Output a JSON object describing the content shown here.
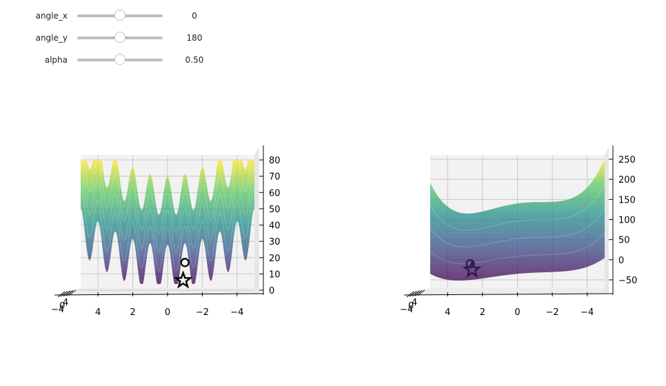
{
  "controls": {
    "sliders": [
      {
        "label": "angle_x",
        "value_text": "0",
        "fraction": 0.5
      },
      {
        "label": "angle_y",
        "value_text": "180",
        "fraction": 0.5
      },
      {
        "label": "alpha",
        "value_text": "0.50",
        "fraction": 0.5
      }
    ]
  },
  "chart_data": [
    {
      "type": "surface",
      "colormap": "viridis",
      "view": {
        "angle_x": 0,
        "angle_y": 180
      },
      "alpha": 0.5,
      "x_ticks": [
        "4",
        "2",
        "0",
        "−2",
        "−4"
      ],
      "x_range": [
        -5,
        5
      ],
      "z_ticks": [
        "0",
        "10",
        "20",
        "30",
        "40",
        "50",
        "60",
        "70",
        "80"
      ],
      "z_range": [
        0,
        85
      ],
      "markers": [
        {
          "kind": "circle",
          "x": -1.0,
          "z": 17
        },
        {
          "kind": "star",
          "x": -0.9,
          "z": 6
        }
      ],
      "depth_tick_labels": [
        "−4",
        "0",
        "4"
      ]
    },
    {
      "type": "surface",
      "colormap": "viridis",
      "view": {
        "angle_x": 0,
        "angle_y": 180
      },
      "alpha": 0.5,
      "x_ticks": [
        "4",
        "2",
        "0",
        "−2",
        "−4"
      ],
      "x_range": [
        -5,
        5
      ],
      "z_ticks": [
        "−50",
        "0",
        "50",
        "100",
        "150",
        "200",
        "250"
      ],
      "z_range": [
        -80,
        275
      ],
      "markers": [
        {
          "kind": "circle",
          "x": 2.7,
          "z": -10
        },
        {
          "kind": "star",
          "x": 2.6,
          "z": -25
        }
      ],
      "depth_tick_labels": [
        "−4",
        "0",
        "4"
      ]
    }
  ]
}
